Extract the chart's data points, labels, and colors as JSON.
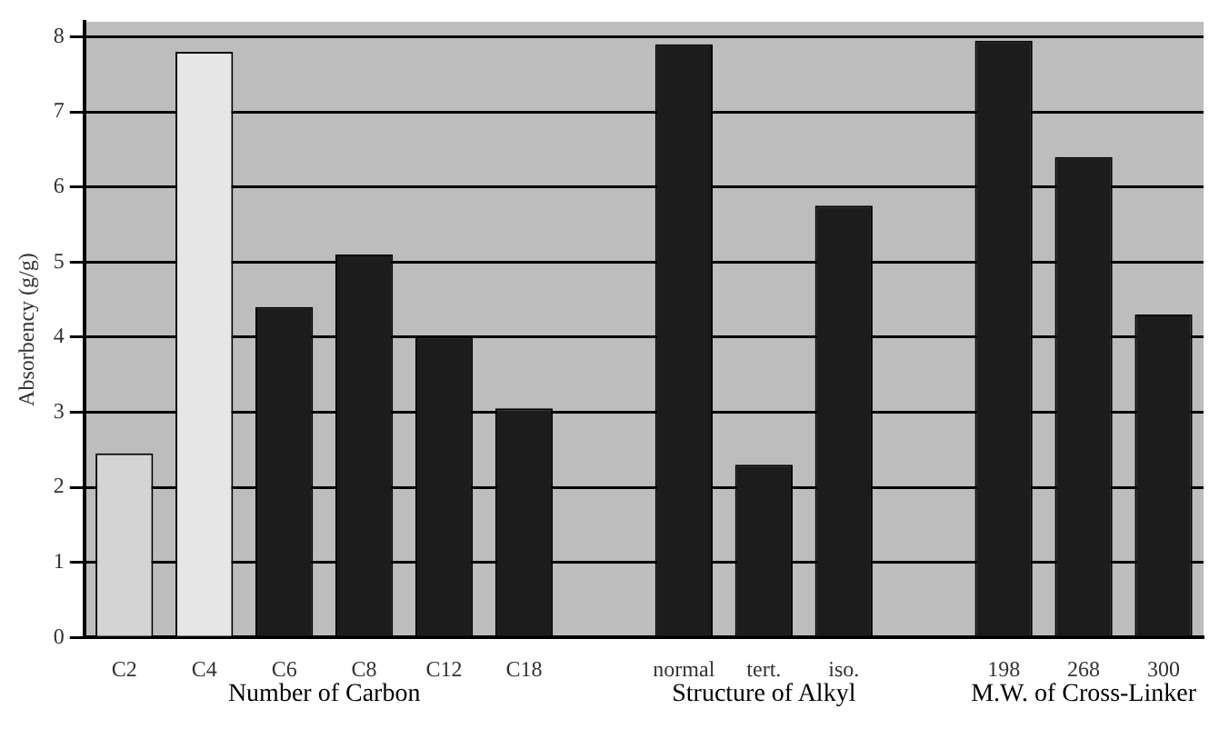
{
  "chart_data": {
    "type": "bar",
    "ylabel": "Absorbency (g/g)",
    "categories": [
      "C2",
      "C4",
      "C6",
      "C8",
      "C12",
      "C18",
      null,
      "normal",
      "tert.",
      "iso.",
      null,
      "198",
      "268",
      "300"
    ],
    "values": [
      2.45,
      7.8,
      4.4,
      5.1,
      4.0,
      3.05,
      null,
      7.9,
      2.3,
      5.75,
      null,
      7.95,
      6.4,
      4.3
    ],
    "colors": [
      "#d4d4d4",
      "#e6e6e6",
      "#1c1c1c",
      "#1c1c1c",
      "#1c1c1c",
      "#1c1c1c",
      "#1c1c1c",
      "#1c1c1c",
      "#1c1c1c",
      "#1c1c1c",
      "#1c1c1c",
      "#1c1c1c",
      "#1c1c1c",
      "#1c1c1c"
    ],
    "ylim": [
      0,
      8.2
    ],
    "yticks": [
      0,
      1,
      2,
      3,
      4,
      5,
      6,
      7,
      8
    ],
    "grid": "y",
    "annotations": [
      "Number of Carbon",
      "Structure of Alkyl",
      "M.W. of Cross-Linker"
    ]
  }
}
